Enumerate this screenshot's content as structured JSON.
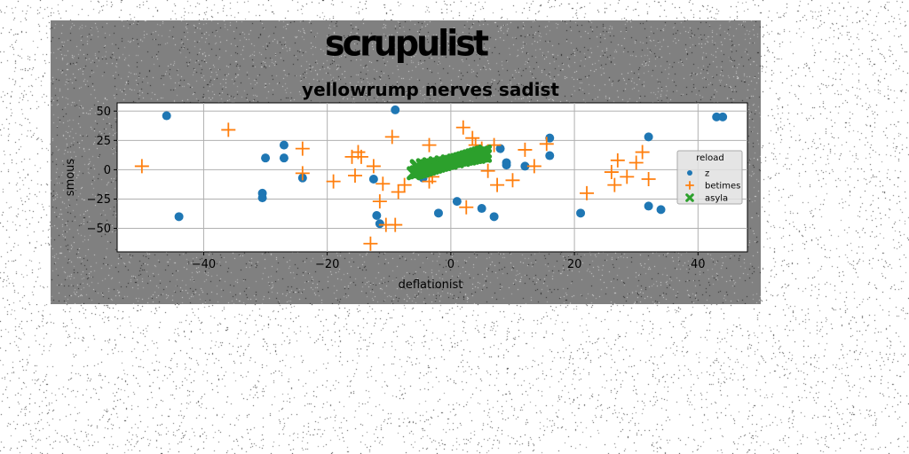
{
  "chart_data": {
    "type": "scatter",
    "title": "scrupulist",
    "subtitle": "yellowrump nerves sadist",
    "xlabel": "deflationist",
    "ylabel": "smous",
    "xlim": [
      -54,
      48
    ],
    "ylim": [
      -70,
      57
    ],
    "xticks": [
      -40,
      -20,
      0,
      20,
      40
    ],
    "yticks": [
      50,
      25,
      0,
      -25,
      -50
    ],
    "grid": true,
    "legend": {
      "title": "reload",
      "placement": "right"
    },
    "series": [
      {
        "name": "z",
        "marker": "circle",
        "color": "#1f77b4",
        "x": [
          -46,
          -44,
          -30.5,
          -30.5,
          -30,
          -27,
          -27,
          -24,
          -12.5,
          -12,
          -11.5,
          -9,
          -4.5,
          -2,
          1,
          5,
          7,
          8,
          9,
          9,
          12,
          16,
          16,
          21,
          32,
          32,
          34,
          43,
          44
        ],
        "y": [
          46,
          -40,
          -20,
          -24,
          10,
          21,
          10,
          -7,
          -8,
          -39,
          -46,
          51,
          -7,
          -37,
          -27,
          -33,
          -40,
          18,
          4,
          6,
          3,
          27,
          12,
          -37,
          28,
          -31,
          -34,
          45,
          45
        ]
      },
      {
        "name": "betimes",
        "marker": "plus",
        "color": "#ff7f0e",
        "x": [
          -50,
          -36,
          -24,
          -24,
          -19,
          -16,
          -15.5,
          -15,
          -14.5,
          -13,
          -12.5,
          -11.5,
          -11,
          -10.5,
          -9.5,
          -9,
          -8.5,
          -7.5,
          -3.5,
          -3.5,
          -3,
          2,
          2.5,
          3.5,
          4,
          5,
          6,
          7,
          7.5,
          10,
          12,
          13.5,
          15.5,
          22,
          26,
          26.5,
          27,
          28.5,
          30,
          31,
          32
        ],
        "y": [
          3,
          34,
          18,
          -3,
          -10,
          11,
          -5,
          15,
          11,
          -63,
          3,
          -27,
          -12,
          -47,
          28,
          -47,
          -19,
          -13,
          -10,
          21,
          -6,
          36,
          -32,
          27,
          21,
          18,
          -1,
          21,
          -13,
          -9,
          17,
          3,
          22,
          -20,
          -2,
          -13,
          8,
          -6,
          6,
          15,
          -8
        ]
      },
      {
        "name": "asyla",
        "marker": "x",
        "color": "#2ca02c",
        "x": [
          -6,
          -5.5,
          -5,
          -4.5,
          -4,
          -3.5,
          -3,
          -2.5,
          -2,
          -1.5,
          -1,
          -0.5,
          0,
          0.5,
          1,
          1.5,
          2,
          2.5,
          3,
          3.5,
          4,
          4.5,
          5,
          5.5,
          -5.5,
          -4.5,
          -3.5,
          -2.5,
          -1.5,
          -0.5,
          0.5,
          1.5,
          2.5,
          3.5,
          4.5,
          5.5,
          -5,
          -4,
          -3,
          -2,
          -1,
          0,
          1,
          2,
          3,
          4,
          5
        ],
        "y": [
          -3,
          -2.2,
          -1.4,
          -0.6,
          0.2,
          1,
          1.8,
          2.6,
          3.4,
          4.2,
          5,
          5.8,
          6.6,
          7.4,
          8.2,
          9,
          9.8,
          10.6,
          11.4,
          12.2,
          13,
          13.8,
          14.6,
          15.4,
          3,
          3.8,
          4.6,
          5.4,
          6.2,
          7,
          7.8,
          8.6,
          9.4,
          10.2,
          11,
          11.8,
          0,
          1.2,
          2.4,
          3.6,
          4.8,
          6,
          7.2,
          8.4,
          9.6,
          10.8,
          12
        ]
      }
    ]
  }
}
